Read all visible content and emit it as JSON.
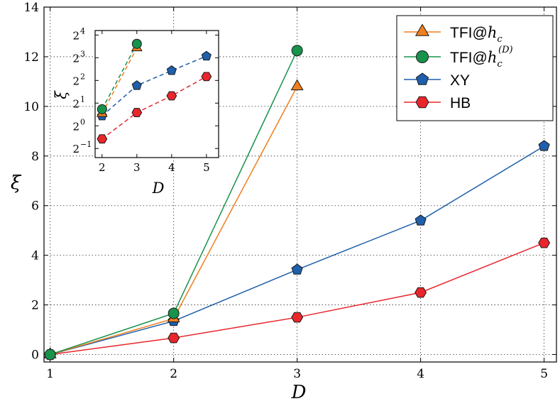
{
  "chart_data": [
    {
      "type": "line",
      "role": "main",
      "xlabel": "D",
      "ylabel": "ξ",
      "xlim": [
        0.95,
        5.1
      ],
      "ylim": [
        -0.3,
        14
      ],
      "xticks": [
        1,
        2,
        3,
        4,
        5
      ],
      "yticks": [
        0,
        2,
        4,
        6,
        8,
        10,
        12,
        14
      ],
      "grid": true,
      "series": [
        {
          "name": "TFI@h_c",
          "color": "#f07f1e",
          "marker": "triangle",
          "x": [
            1,
            2,
            3
          ],
          "y": [
            0,
            1.45,
            10.8
          ]
        },
        {
          "name": "TFI@h_c^(D)",
          "color": "#17934b",
          "marker": "circle",
          "x": [
            1,
            2,
            3
          ],
          "y": [
            0,
            1.66,
            12.25
          ]
        },
        {
          "name": "XY",
          "color": "#1f5fab",
          "marker": "pentagon",
          "x": [
            1,
            2,
            3,
            4,
            5
          ],
          "y": [
            0,
            1.35,
            3.42,
            5.4,
            8.4
          ]
        },
        {
          "name": "HB",
          "color": "#e8262b",
          "marker": "hexagon",
          "x": [
            1,
            2,
            3,
            4,
            5
          ],
          "y": [
            0,
            0.67,
            1.5,
            2.5,
            4.5
          ]
        }
      ]
    },
    {
      "type": "line",
      "role": "inset",
      "xlabel": "D",
      "ylabel": "ξ",
      "yscale": "log2",
      "xlim": [
        1.8,
        5.35
      ],
      "ylim_log2": [
        -1.4,
        4.2
      ],
      "xticks": [
        2,
        3,
        4,
        5
      ],
      "yticks_log2": [
        -1,
        0,
        1,
        2,
        3,
        4
      ],
      "linestyle": "dashed",
      "series": [
        {
          "name": "TFI@h_c",
          "color": "#f07f1e",
          "marker": "triangle",
          "x": [
            2,
            3
          ],
          "y": [
            1.45,
            10.8
          ]
        },
        {
          "name": "TFI@h_c^(D)",
          "color": "#17934b",
          "marker": "circle",
          "x": [
            2,
            3
          ],
          "y": [
            1.66,
            12.25
          ]
        },
        {
          "name": "XY",
          "color": "#1f5fab",
          "marker": "pentagon",
          "x": [
            2,
            3,
            4,
            5
          ],
          "y": [
            1.35,
            3.42,
            5.4,
            8.4
          ]
        },
        {
          "name": "HB",
          "color": "#e8262b",
          "marker": "hexagon",
          "x": [
            2,
            3,
            4,
            5
          ],
          "y": [
            0.67,
            1.5,
            2.5,
            4.5
          ]
        }
      ]
    }
  ],
  "legend": {
    "placement": "top-right",
    "entries": [
      {
        "text": "TFI@",
        "math": "h",
        "sub": "c",
        "sup": ""
      },
      {
        "text": "TFI@",
        "math": "h",
        "sub": "c",
        "sup": "(D)"
      },
      {
        "text": "XY",
        "math": "",
        "sub": "",
        "sup": ""
      },
      {
        "text": "HB",
        "math": "",
        "sub": "",
        "sup": ""
      }
    ]
  }
}
